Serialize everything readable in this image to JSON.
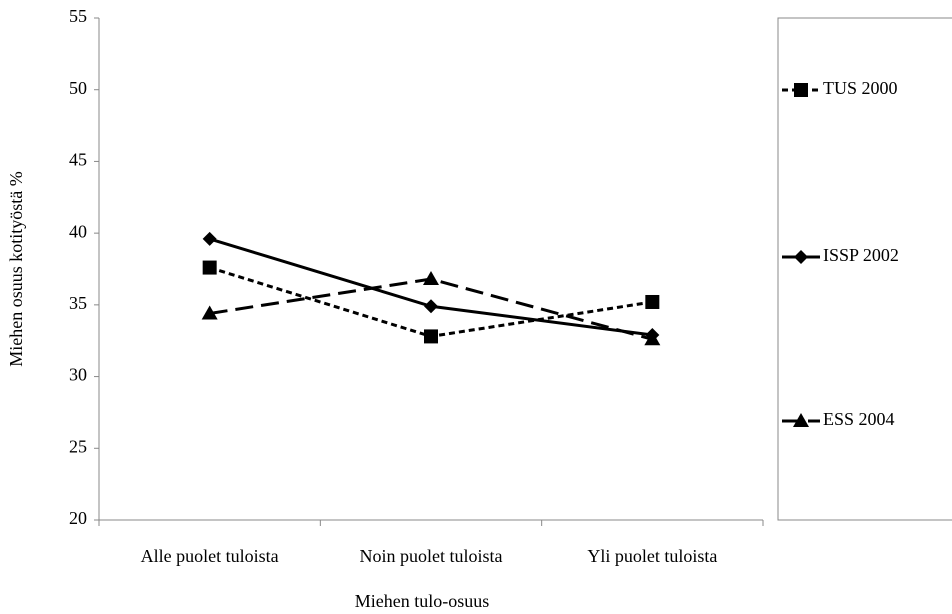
{
  "chart_data": {
    "type": "line",
    "xlabel": "Miehen tulo-osuus",
    "ylabel": "Miehen osuus kotityöstä %",
    "categories": [
      "Alle puolet tuloista",
      "Noin puolet tuloista",
      "Yli puolet tuloista"
    ],
    "series": [
      {
        "name": "TUS 2000",
        "color": "#000000",
        "dash": "6,4",
        "marker": "square",
        "values": [
          37.6,
          32.8,
          35.2
        ]
      },
      {
        "name": "ISSP 2002",
        "color": "#000000",
        "dash": "none",
        "marker": "diamond",
        "values": [
          39.6,
          34.9,
          32.9
        ]
      },
      {
        "name": "ESS 2004",
        "color": "#000000",
        "dash": "18,8",
        "marker": "triangle",
        "values": [
          34.4,
          36.8,
          32.6
        ]
      }
    ],
    "ylim": [
      20,
      55
    ],
    "yticks": [
      20,
      25,
      30,
      35,
      40,
      45,
      50,
      55
    ],
    "legend": "right"
  }
}
